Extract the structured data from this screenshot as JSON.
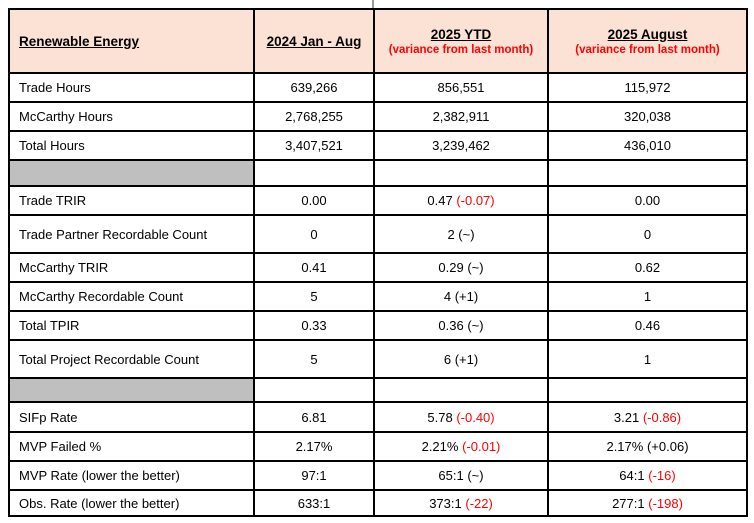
{
  "table": {
    "header": {
      "col1": "Renewable Energy",
      "col2": "2024 Jan - Aug",
      "col3": {
        "title": "2025 YTD",
        "subtitle": "(variance from last month)"
      },
      "col4": {
        "title": "2025 August",
        "subtitle": "(variance from last month)"
      }
    },
    "colors": {
      "header_bg": "#FBE2D5",
      "separator_bg": "#BFBFBF",
      "variance_red": "#FF0000",
      "text_black": "#000000",
      "border": "#000000"
    },
    "rows": [
      {
        "type": "data",
        "label": "Trade Hours",
        "cells": [
          {
            "main": "639,266"
          },
          {
            "main": "856,551"
          },
          {
            "main": "115,972"
          }
        ]
      },
      {
        "type": "data",
        "label": "McCarthy Hours",
        "cells": [
          {
            "main": "2,768,255"
          },
          {
            "main": "2,382,911"
          },
          {
            "main": "320,038"
          }
        ]
      },
      {
        "type": "data",
        "label": "Total Hours",
        "cells": [
          {
            "main": "3,407,521"
          },
          {
            "main": "3,239,462"
          },
          {
            "main": "436,010"
          }
        ]
      },
      {
        "type": "separator"
      },
      {
        "type": "data",
        "label": "Trade TRIR",
        "cells": [
          {
            "main": "0.00"
          },
          {
            "main": "0.47",
            "variance": "(-0.07)",
            "variance_color": "#FF0000"
          },
          {
            "main": "0.00"
          }
        ]
      },
      {
        "type": "data",
        "label": "Trade Partner Recordable Count",
        "cells": [
          {
            "main": "0"
          },
          {
            "main": "2",
            "variance": "(~)",
            "variance_color": "#000000"
          },
          {
            "main": "0"
          }
        ]
      },
      {
        "type": "data",
        "label": "McCarthy TRIR",
        "cells": [
          {
            "main": "0.41"
          },
          {
            "main": "0.29",
            "variance": "(~)",
            "variance_color": "#000000"
          },
          {
            "main": "0.62"
          }
        ]
      },
      {
        "type": "data",
        "label": "McCarthy Recordable Count",
        "cells": [
          {
            "main": "5"
          },
          {
            "main": "4",
            "variance": "(+1)",
            "variance_color": "#000000"
          },
          {
            "main": "1"
          }
        ]
      },
      {
        "type": "data",
        "label": "Total TPIR",
        "cells": [
          {
            "main": "0.33"
          },
          {
            "main": "0.36",
            "variance": "(~)",
            "variance_color": "#000000"
          },
          {
            "main": "0.46"
          }
        ]
      },
      {
        "type": "data",
        "label": "Total Project Recordable Count",
        "cells": [
          {
            "main": "5"
          },
          {
            "main": "6",
            "variance": "(+1)",
            "variance_color": "#000000"
          },
          {
            "main": "1"
          }
        ]
      },
      {
        "type": "separator"
      },
      {
        "type": "data",
        "label": "SIFp Rate",
        "cells": [
          {
            "main": "6.81"
          },
          {
            "main": "5.78",
            "variance": "(-0.40)",
            "variance_color": "#FF0000"
          },
          {
            "main": "3.21",
            "variance": "(-0.86)",
            "variance_color": "#FF0000"
          }
        ]
      },
      {
        "type": "data",
        "label": "MVP Failed %",
        "cells": [
          {
            "main": "2.17%"
          },
          {
            "main": "2.21%",
            "variance": "(-0.01)",
            "variance_color": "#FF0000"
          },
          {
            "main": "2.17%",
            "variance": "(+0.06)",
            "variance_color": "#000000"
          }
        ]
      },
      {
        "type": "data",
        "label": "MVP Rate (lower the better)",
        "cells": [
          {
            "main": "97:1"
          },
          {
            "main": "65:1",
            "variance": "(~)",
            "variance_color": "#000000"
          },
          {
            "main": "64:1",
            "variance": "(-16)",
            "variance_color": "#FF0000"
          }
        ]
      },
      {
        "type": "data",
        "label": "Obs. Rate (lower the better)",
        "cells": [
          {
            "main": "633:1"
          },
          {
            "main": "373:1",
            "variance": "(-22)",
            "variance_color": "#FF0000"
          },
          {
            "main": "277:1",
            "variance": "(-198)",
            "variance_color": "#FF0000"
          }
        ]
      }
    ]
  }
}
